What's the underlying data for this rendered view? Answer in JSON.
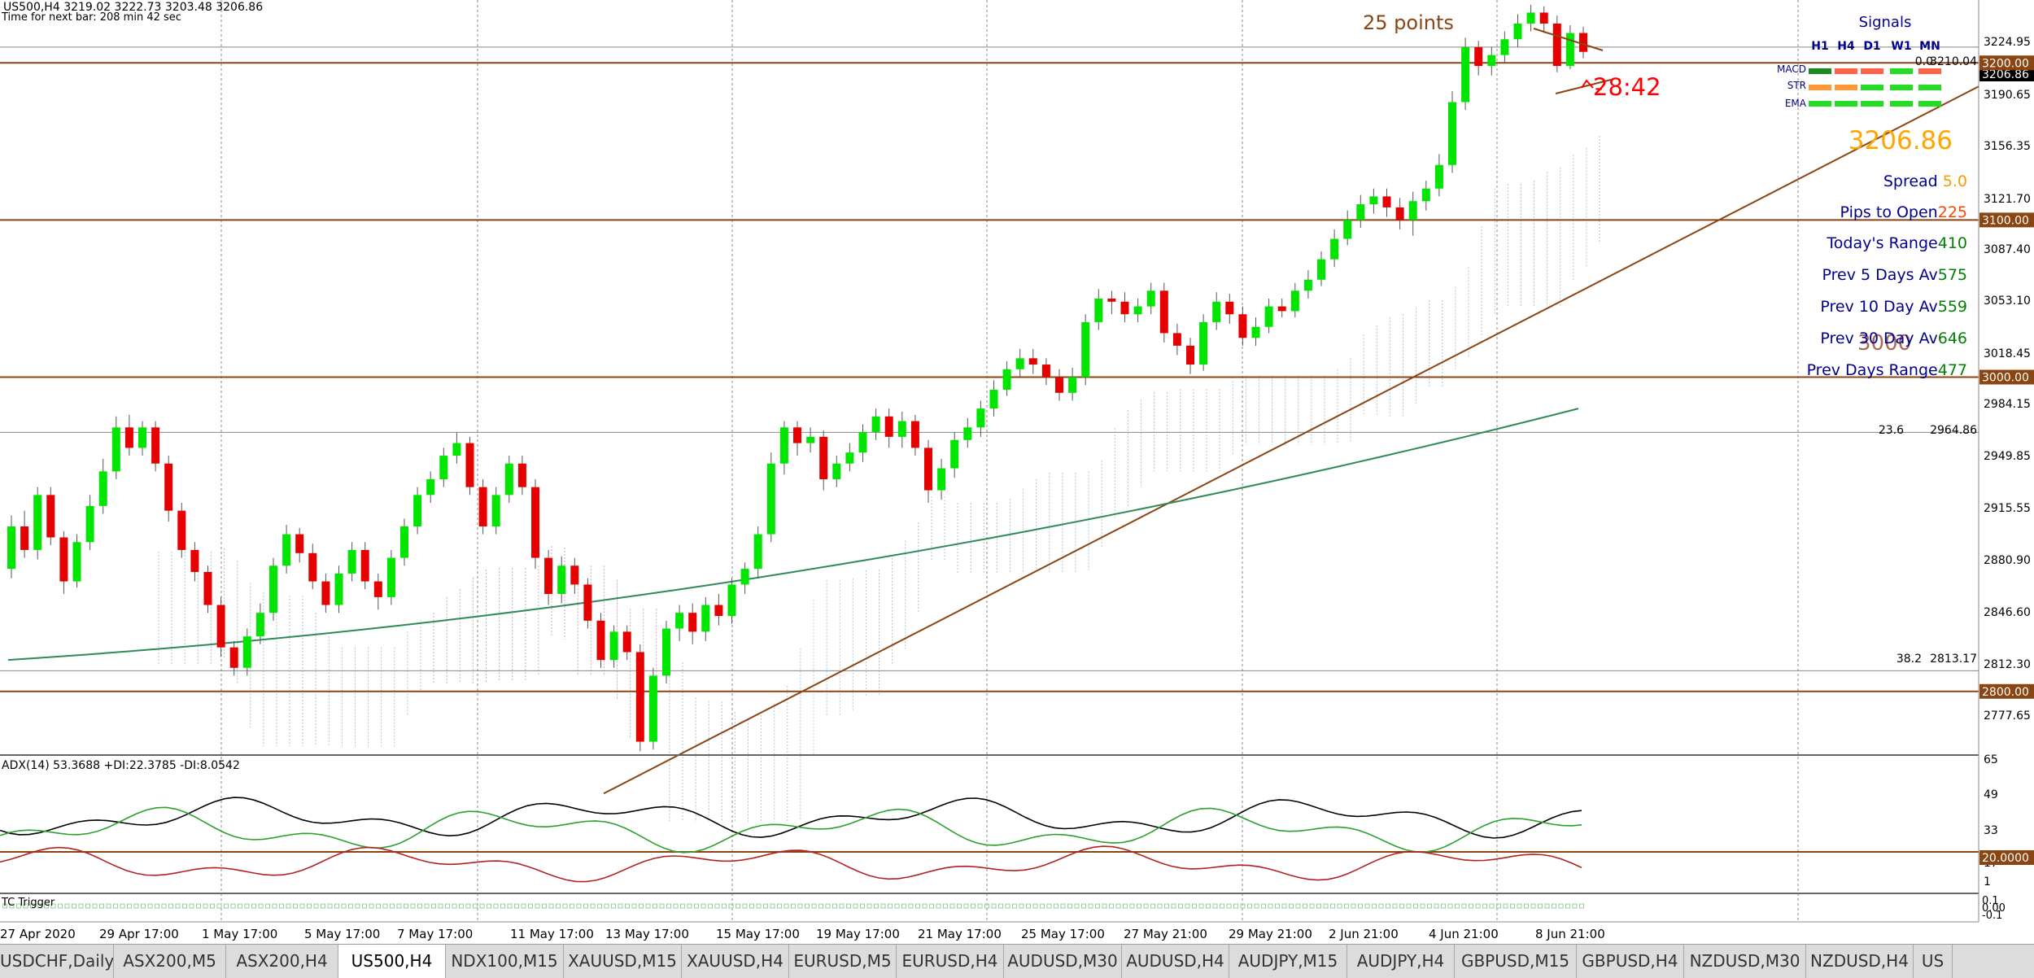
{
  "header": {
    "symbol_line": "US500,H4  3219.02 3222.73 3203.48 3206.86",
    "timer_line": "Time for next bar: 208 min 42 sec"
  },
  "annotations": {
    "points": "25 points",
    "countdown": "28:42",
    "level_3000": "3000"
  },
  "fib": [
    {
      "ratio": "0.0",
      "value": "3210.04"
    },
    {
      "ratio": "23.6",
      "value": "2964.86"
    },
    {
      "ratio": "38.2",
      "value": "2813.17"
    }
  ],
  "signals": {
    "title": "Signals",
    "timeframes": [
      "H1",
      "H4",
      "D1",
      "W1",
      "MN"
    ],
    "rows": [
      {
        "label": "MACD",
        "colors": [
          "#1d8a1d",
          "#ff6347",
          "#ff6347",
          "#22dd22",
          "#ff6347"
        ]
      },
      {
        "label": "STR",
        "colors": [
          "#ff9933",
          "#ff9933",
          "#22dd22",
          "#22dd22",
          "#22dd22"
        ]
      },
      {
        "label": "EMA",
        "colors": [
          "#22dd22",
          "#22dd22",
          "#22dd22",
          "#22dd22",
          "#22dd22"
        ]
      }
    ]
  },
  "stats": {
    "price": "3206.86",
    "rows": [
      {
        "label": "Spread ",
        "value": "5.0",
        "value_color": "#ff9900"
      },
      {
        "label": "Pips to Open",
        "value": "225",
        "value_color": "#ff4500"
      },
      {
        "label": "Today's Range",
        "value": "410",
        "value_color": "#008000"
      },
      {
        "label": "Prev 5 Days Av",
        "value": "575",
        "value_color": "#008000"
      },
      {
        "label": "Prev 10 Day Av",
        "value": "559",
        "value_color": "#008000"
      },
      {
        "label": "Prev 30 Day Av",
        "value": "646",
        "value_color": "#008000"
      },
      {
        "label": "Prev Days Range",
        "value": "477",
        "value_color": "#008000"
      }
    ]
  },
  "price_axis": {
    "ticks": [
      "3224.95",
      "3190.65",
      "3156.35",
      "3121.70",
      "3087.40",
      "3053.10",
      "3018.45",
      "2984.15",
      "2949.85",
      "2915.55",
      "2880.90",
      "2846.60",
      "2812.30",
      "2777.65"
    ],
    "current": "3206.86",
    "levels": [
      "3200.00",
      "3100.00",
      "3000.00",
      "2800.00"
    ]
  },
  "adx": {
    "label": "ADX(14) 53.3688 +DI:22.3785 -DI:8.0542",
    "axis": [
      "65",
      "49",
      "33",
      "17",
      "1"
    ],
    "level_tag": "20.0000"
  },
  "tc": {
    "label": "TC Trigger",
    "axis": [
      "0.1",
      "0.00",
      "-0.1"
    ]
  },
  "time_axis": [
    "27 Apr 2020",
    "29 Apr 17:00",
    "1 May 17:00",
    "5 May 17:00",
    "7 May 17:00",
    "11 May 17:00",
    "13 May 17:00",
    "15 May 17:00",
    "19 May 17:00",
    "21 May 17:00",
    "25 May 17:00",
    "27 May 21:00",
    "29 May 21:00",
    "2 Jun 21:00",
    "4 Jun 21:00",
    "8 Jun 21:00"
  ],
  "tabs": [
    {
      "label": "USDCHF,Daily",
      "active": false
    },
    {
      "label": "ASX200,M5",
      "active": false
    },
    {
      "label": "ASX200,H4",
      "active": false
    },
    {
      "label": "US500,H4",
      "active": true
    },
    {
      "label": "NDX100,M15",
      "active": false
    },
    {
      "label": "XAUUSD,M15",
      "active": false
    },
    {
      "label": "XAUUSD,H4",
      "active": false
    },
    {
      "label": "EURUSD,M5",
      "active": false
    },
    {
      "label": "EURUSD,H4",
      "active": false
    },
    {
      "label": "AUDUSD,M30",
      "active": false
    },
    {
      "label": "AUDUSD,H4",
      "active": false
    },
    {
      "label": "AUDJPY,M15",
      "active": false
    },
    {
      "label": "AUDJPY,H4",
      "active": false
    },
    {
      "label": "GBPUSD,M15",
      "active": false
    },
    {
      "label": "GBPUSD,H4",
      "active": false
    },
    {
      "label": "NZDUSD,M30",
      "active": false
    },
    {
      "label": "NZDUSD,H4",
      "active": false
    },
    {
      "label": "US",
      "active": false
    }
  ],
  "colors": {
    "bull": "#00e600",
    "bear": "#e60000",
    "level_line": "#8b4513",
    "ma_line": "#2e8b57",
    "signals_header": "#00008b",
    "price_big": "#ffa500",
    "countdown": "#ff0000",
    "points_text": "#8b4513"
  },
  "chart_data": {
    "type": "candlestick",
    "symbol": "US500",
    "timeframe": "H4",
    "ylim": [
      2760,
      3240
    ],
    "horizontal_levels": [
      3200,
      3100,
      3000,
      2800
    ],
    "fib_levels": [
      {
        "ratio": 23.6,
        "value": 2964.86
      },
      {
        "ratio": 38.2,
        "value": 2813.17
      },
      {
        "ratio": 0.0,
        "value": 3210.04
      }
    ],
    "trend_line": {
      "from": 2735,
      "to": 3185
    },
    "moving_average": {
      "from": 2820,
      "to": 2980
    },
    "candles": [
      {
        "o": 2878,
        "c": 2905,
        "h": 2912,
        "l": 2872
      },
      {
        "o": 2905,
        "c": 2890,
        "h": 2915,
        "l": 2885
      },
      {
        "o": 2890,
        "c": 2925,
        "h": 2930,
        "l": 2884
      },
      {
        "o": 2925,
        "c": 2898,
        "h": 2930,
        "l": 2893
      },
      {
        "o": 2898,
        "c": 2870,
        "h": 2902,
        "l": 2862
      },
      {
        "o": 2870,
        "c": 2895,
        "h": 2900,
        "l": 2866
      },
      {
        "o": 2895,
        "c": 2918,
        "h": 2925,
        "l": 2890
      },
      {
        "o": 2918,
        "c": 2940,
        "h": 2948,
        "l": 2913
      },
      {
        "o": 2940,
        "c": 2968,
        "h": 2975,
        "l": 2935
      },
      {
        "o": 2968,
        "c": 2955,
        "h": 2976,
        "l": 2950
      },
      {
        "o": 2955,
        "c": 2968,
        "h": 2972,
        "l": 2950
      },
      {
        "o": 2968,
        "c": 2945,
        "h": 2972,
        "l": 2940
      },
      {
        "o": 2945,
        "c": 2915,
        "h": 2950,
        "l": 2908
      },
      {
        "o": 2915,
        "c": 2890,
        "h": 2920,
        "l": 2885
      },
      {
        "o": 2890,
        "c": 2876,
        "h": 2895,
        "l": 2870
      },
      {
        "o": 2876,
        "c": 2855,
        "h": 2880,
        "l": 2850
      },
      {
        "o": 2855,
        "c": 2828,
        "h": 2860,
        "l": 2822
      },
      {
        "o": 2828,
        "c": 2815,
        "h": 2832,
        "l": 2810
      },
      {
        "o": 2815,
        "c": 2835,
        "h": 2840,
        "l": 2810
      },
      {
        "o": 2835,
        "c": 2850,
        "h": 2856,
        "l": 2830
      },
      {
        "o": 2850,
        "c": 2880,
        "h": 2885,
        "l": 2845
      },
      {
        "o": 2880,
        "c": 2900,
        "h": 2906,
        "l": 2875
      },
      {
        "o": 2900,
        "c": 2888,
        "h": 2904,
        "l": 2882
      },
      {
        "o": 2888,
        "c": 2870,
        "h": 2894,
        "l": 2865
      },
      {
        "o": 2870,
        "c": 2855,
        "h": 2875,
        "l": 2850
      },
      {
        "o": 2855,
        "c": 2875,
        "h": 2880,
        "l": 2850
      },
      {
        "o": 2875,
        "c": 2890,
        "h": 2895,
        "l": 2870
      },
      {
        "o": 2890,
        "c": 2870,
        "h": 2895,
        "l": 2865
      },
      {
        "o": 2870,
        "c": 2860,
        "h": 2875,
        "l": 2852
      },
      {
        "o": 2860,
        "c": 2885,
        "h": 2890,
        "l": 2855
      },
      {
        "o": 2885,
        "c": 2905,
        "h": 2910,
        "l": 2880
      },
      {
        "o": 2905,
        "c": 2925,
        "h": 2930,
        "l": 2900
      },
      {
        "o": 2925,
        "c": 2935,
        "h": 2940,
        "l": 2920
      },
      {
        "o": 2935,
        "c": 2950,
        "h": 2955,
        "l": 2930
      },
      {
        "o": 2950,
        "c": 2958,
        "h": 2965,
        "l": 2945
      },
      {
        "o": 2958,
        "c": 2930,
        "h": 2962,
        "l": 2925
      },
      {
        "o": 2930,
        "c": 2905,
        "h": 2935,
        "l": 2900
      },
      {
        "o": 2905,
        "c": 2925,
        "h": 2930,
        "l": 2900
      },
      {
        "o": 2925,
        "c": 2945,
        "h": 2950,
        "l": 2920
      },
      {
        "o": 2945,
        "c": 2930,
        "h": 2950,
        "l": 2925
      },
      {
        "o": 2930,
        "c": 2885,
        "h": 2935,
        "l": 2878
      },
      {
        "o": 2885,
        "c": 2862,
        "h": 2890,
        "l": 2855
      },
      {
        "o": 2862,
        "c": 2880,
        "h": 2886,
        "l": 2856
      },
      {
        "o": 2880,
        "c": 2868,
        "h": 2885,
        "l": 2862
      },
      {
        "o": 2868,
        "c": 2845,
        "h": 2872,
        "l": 2840
      },
      {
        "o": 2845,
        "c": 2820,
        "h": 2850,
        "l": 2815
      },
      {
        "o": 2820,
        "c": 2838,
        "h": 2842,
        "l": 2815
      },
      {
        "o": 2838,
        "c": 2825,
        "h": 2842,
        "l": 2820
      },
      {
        "o": 2825,
        "c": 2768,
        "h": 2830,
        "l": 2762
      },
      {
        "o": 2768,
        "c": 2810,
        "h": 2815,
        "l": 2763
      },
      {
        "o": 2810,
        "c": 2840,
        "h": 2845,
        "l": 2805
      },
      {
        "o": 2840,
        "c": 2850,
        "h": 2855,
        "l": 2832
      },
      {
        "o": 2850,
        "c": 2838,
        "h": 2856,
        "l": 2830
      },
      {
        "o": 2838,
        "c": 2855,
        "h": 2860,
        "l": 2832
      },
      {
        "o": 2855,
        "c": 2848,
        "h": 2862,
        "l": 2842
      },
      {
        "o": 2848,
        "c": 2868,
        "h": 2872,
        "l": 2843
      },
      {
        "o": 2868,
        "c": 2878,
        "h": 2882,
        "l": 2862
      },
      {
        "o": 2878,
        "c": 2900,
        "h": 2905,
        "l": 2872
      },
      {
        "o": 2900,
        "c": 2945,
        "h": 2952,
        "l": 2895
      },
      {
        "o": 2945,
        "c": 2968,
        "h": 2972,
        "l": 2938
      },
      {
        "o": 2968,
        "c": 2958,
        "h": 2972,
        "l": 2950
      },
      {
        "o": 2958,
        "c": 2962,
        "h": 2968,
        "l": 2952
      },
      {
        "o": 2962,
        "c": 2935,
        "h": 2966,
        "l": 2928
      },
      {
        "o": 2935,
        "c": 2945,
        "h": 2950,
        "l": 2930
      },
      {
        "o": 2945,
        "c": 2952,
        "h": 2958,
        "l": 2940
      },
      {
        "o": 2952,
        "c": 2965,
        "h": 2970,
        "l": 2946
      },
      {
        "o": 2965,
        "c": 2975,
        "h": 2980,
        "l": 2960
      },
      {
        "o": 2975,
        "c": 2962,
        "h": 2980,
        "l": 2955
      },
      {
        "o": 2962,
        "c": 2972,
        "h": 2978,
        "l": 2955
      },
      {
        "o": 2972,
        "c": 2955,
        "h": 2976,
        "l": 2950
      },
      {
        "o": 2955,
        "c": 2928,
        "h": 2960,
        "l": 2920
      },
      {
        "o": 2928,
        "c": 2942,
        "h": 2948,
        "l": 2922
      },
      {
        "o": 2942,
        "c": 2960,
        "h": 2965,
        "l": 2936
      },
      {
        "o": 2960,
        "c": 2968,
        "h": 2974,
        "l": 2955
      },
      {
        "o": 2968,
        "c": 2980,
        "h": 2985,
        "l": 2962
      },
      {
        "o": 2980,
        "c": 2992,
        "h": 2998,
        "l": 2975
      },
      {
        "o": 2992,
        "c": 3005,
        "h": 3010,
        "l": 2988
      },
      {
        "o": 3005,
        "c": 3012,
        "h": 3018,
        "l": 3000
      },
      {
        "o": 3012,
        "c": 3008,
        "h": 3018,
        "l": 3002
      },
      {
        "o": 3008,
        "c": 3000,
        "h": 3012,
        "l": 2995
      },
      {
        "o": 3000,
        "c": 2990,
        "h": 3005,
        "l": 2985
      },
      {
        "o": 2990,
        "c": 3000,
        "h": 3006,
        "l": 2985
      },
      {
        "o": 3000,
        "c": 3035,
        "h": 3040,
        "l": 2995
      },
      {
        "o": 3035,
        "c": 3050,
        "h": 3056,
        "l": 3030
      },
      {
        "o": 3050,
        "c": 3048,
        "h": 3055,
        "l": 3040
      },
      {
        "o": 3048,
        "c": 3040,
        "h": 3054,
        "l": 3035
      },
      {
        "o": 3040,
        "c": 3045,
        "h": 3050,
        "l": 3035
      },
      {
        "o": 3045,
        "c": 3055,
        "h": 3060,
        "l": 3040
      },
      {
        "o": 3055,
        "c": 3028,
        "h": 3060,
        "l": 3022
      },
      {
        "o": 3028,
        "c": 3020,
        "h": 3034,
        "l": 3014
      },
      {
        "o": 3020,
        "c": 3008,
        "h": 3025,
        "l": 3002
      },
      {
        "o": 3008,
        "c": 3035,
        "h": 3040,
        "l": 3004
      },
      {
        "o": 3035,
        "c": 3048,
        "h": 3054,
        "l": 3030
      },
      {
        "o": 3048,
        "c": 3040,
        "h": 3053,
        "l": 3034
      },
      {
        "o": 3040,
        "c": 3025,
        "h": 3045,
        "l": 3020
      },
      {
        "o": 3025,
        "c": 3032,
        "h": 3038,
        "l": 3020
      },
      {
        "o": 3032,
        "c": 3045,
        "h": 3050,
        "l": 3028
      },
      {
        "o": 3045,
        "c": 3042,
        "h": 3050,
        "l": 3038
      },
      {
        "o": 3042,
        "c": 3055,
        "h": 3060,
        "l": 3038
      },
      {
        "o": 3055,
        "c": 3062,
        "h": 3068,
        "l": 3050
      },
      {
        "o": 3062,
        "c": 3075,
        "h": 3080,
        "l": 3058
      },
      {
        "o": 3075,
        "c": 3088,
        "h": 3094,
        "l": 3070
      },
      {
        "o": 3088,
        "c": 3100,
        "h": 3106,
        "l": 3084
      },
      {
        "o": 3100,
        "c": 3110,
        "h": 3116,
        "l": 3095
      },
      {
        "o": 3110,
        "c": 3115,
        "h": 3120,
        "l": 3104
      },
      {
        "o": 3115,
        "c": 3108,
        "h": 3120,
        "l": 3102
      },
      {
        "o": 3108,
        "c": 3100,
        "h": 3114,
        "l": 3094
      },
      {
        "o": 3100,
        "c": 3112,
        "h": 3118,
        "l": 3090
      },
      {
        "o": 3112,
        "c": 3120,
        "h": 3125,
        "l": 3106
      },
      {
        "o": 3120,
        "c": 3135,
        "h": 3142,
        "l": 3115
      },
      {
        "o": 3135,
        "c": 3175,
        "h": 3182,
        "l": 3130
      },
      {
        "o": 3175,
        "c": 3210,
        "h": 3216,
        "l": 3170
      },
      {
        "o": 3210,
        "c": 3198,
        "h": 3214,
        "l": 3192
      },
      {
        "o": 3198,
        "c": 3205,
        "h": 3210,
        "l": 3192
      },
      {
        "o": 3205,
        "c": 3215,
        "h": 3220,
        "l": 3200
      },
      {
        "o": 3215,
        "c": 3225,
        "h": 3231,
        "l": 3210
      },
      {
        "o": 3225,
        "c": 3232,
        "h": 3237,
        "l": 3220
      },
      {
        "o": 3232,
        "c": 3225,
        "h": 3236,
        "l": 3219
      },
      {
        "o": 3225,
        "c": 3198,
        "h": 3230,
        "l": 3194
      },
      {
        "o": 3198,
        "c": 3219,
        "h": 3224,
        "l": 3196
      },
      {
        "o": 3219,
        "c": 3207,
        "h": 3223,
        "l": 3203
      }
    ]
  }
}
